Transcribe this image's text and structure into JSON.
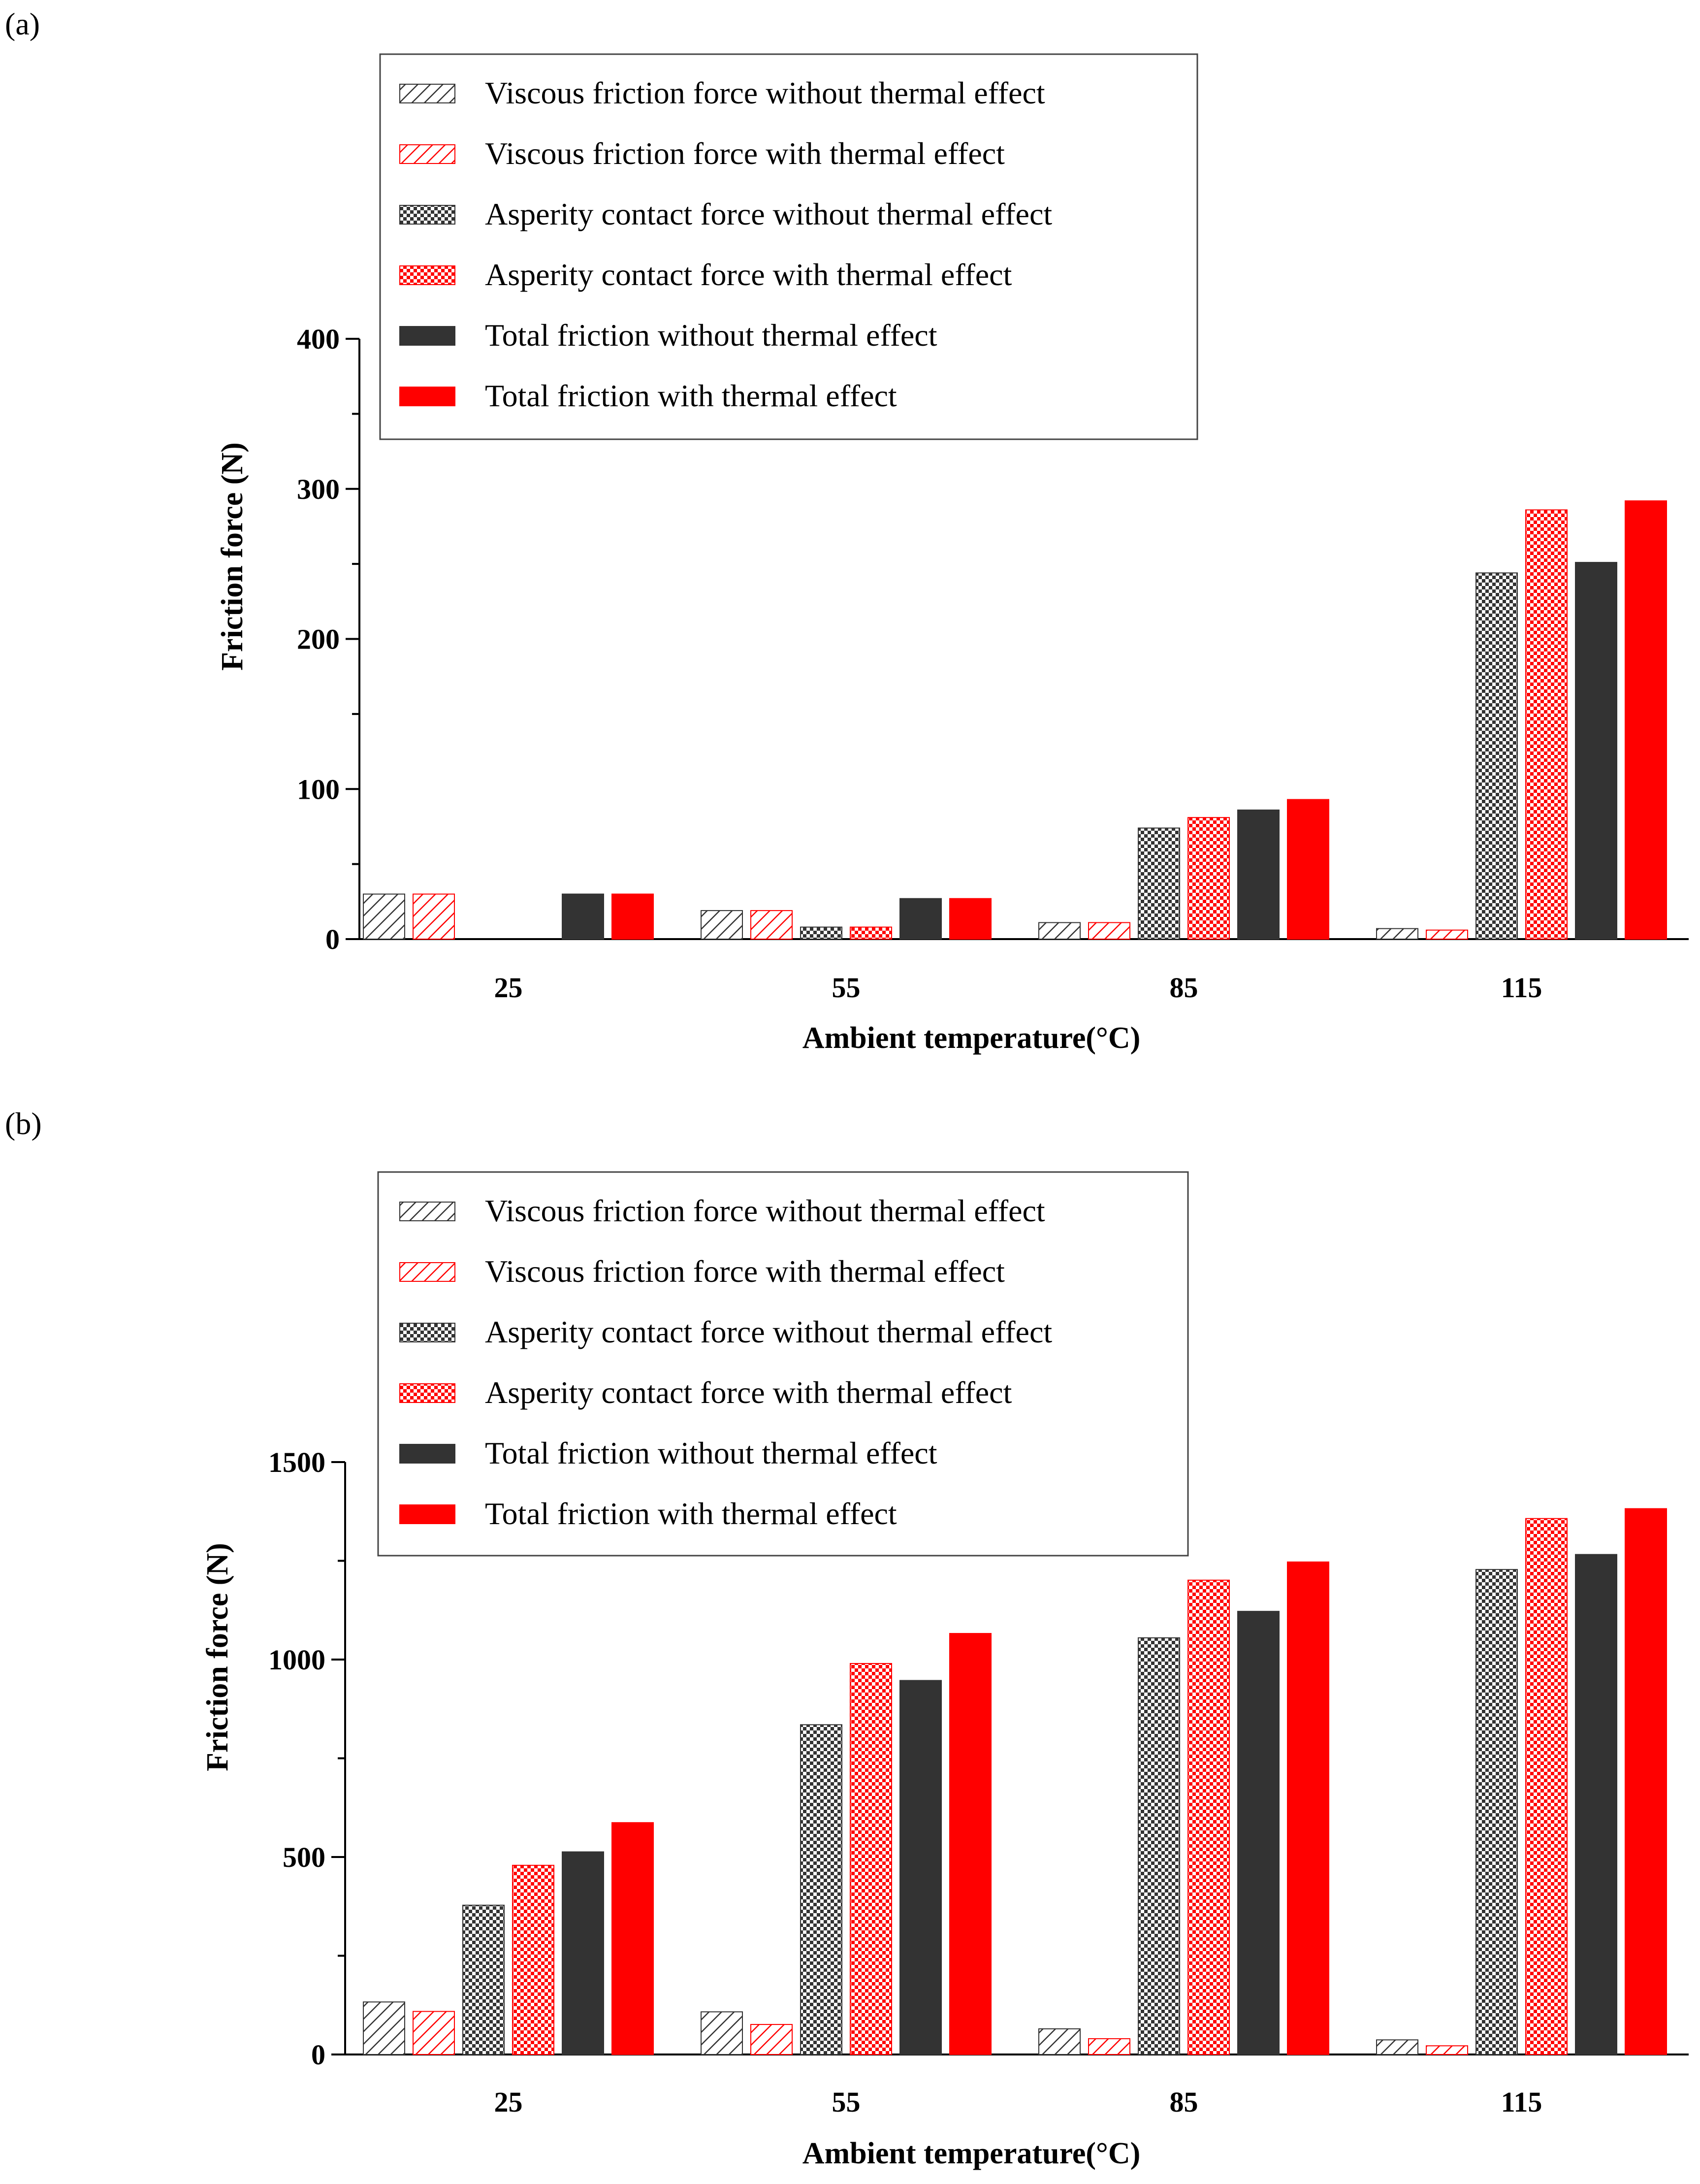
{
  "colors": {
    "black_series": "#333333",
    "red_series": "#ff0000",
    "axis": "#000000"
  },
  "chart_data": [
    {
      "panel_label": "(a)",
      "type": "bar",
      "xlabel": "Ambient temperature(°C)",
      "ylabel": "Friction force (N)",
      "ylim": [
        0,
        400
      ],
      "yticks": [
        "0",
        "100",
        "200",
        "300",
        "400"
      ],
      "categories": [
        "25",
        "55",
        "85",
        "115"
      ],
      "grid": false,
      "legend_position": "top",
      "series": [
        {
          "name": "Viscous friction force without thermal effect",
          "values": [
            30,
            19,
            11,
            7
          ],
          "color": "#333333",
          "pattern": "hatch"
        },
        {
          "name": "Viscous friction force with thermal effect",
          "values": [
            30,
            19,
            11,
            6
          ],
          "color": "#ff0000",
          "pattern": "hatch"
        },
        {
          "name": "Asperity contact  force without thermal effect",
          "values": [
            0,
            8,
            74,
            244
          ],
          "color": "#333333",
          "pattern": "checker"
        },
        {
          "name": "Asperity contact  force with thermal effect",
          "values": [
            0,
            8,
            81,
            286
          ],
          "color": "#ff0000",
          "pattern": "checker"
        },
        {
          "name": "Total friction without thermal effect",
          "values": [
            30,
            27,
            86,
            251
          ],
          "color": "#333333",
          "pattern": "solid"
        },
        {
          "name": "Total friction with thermal effect",
          "values": [
            30,
            27,
            93,
            292
          ],
          "color": "#ff0000",
          "pattern": "solid"
        }
      ]
    },
    {
      "panel_label": "(b)",
      "type": "bar",
      "xlabel": "Ambient temperature(°C)",
      "ylabel": "Friction force (N)",
      "ylim": [
        0,
        1500
      ],
      "yticks": [
        "0",
        "500",
        "1000",
        "1500"
      ],
      "categories": [
        "25",
        "55",
        "85",
        "115"
      ],
      "grid": false,
      "legend_position": "top",
      "series": [
        {
          "name": "Viscous friction force without thermal effect",
          "values": [
            133,
            108,
            65,
            37
          ],
          "color": "#333333",
          "pattern": "hatch"
        },
        {
          "name": "Viscous friction force with thermal effect",
          "values": [
            109,
            76,
            40,
            22
          ],
          "color": "#ff0000",
          "pattern": "hatch"
        },
        {
          "name": "Asperity contact  force without thermal effect",
          "values": [
            378,
            835,
            1055,
            1228
          ],
          "color": "#333333",
          "pattern": "checker"
        },
        {
          "name": "Asperity contact  force with thermal effect",
          "values": [
            479,
            990,
            1201,
            1357
          ],
          "color": "#ff0000",
          "pattern": "checker"
        },
        {
          "name": "Total friction without  thermal effect",
          "values": [
            513,
            947,
            1122,
            1266
          ],
          "color": "#333333",
          "pattern": "solid"
        },
        {
          "name": "Total friction with thermal effect",
          "values": [
            587,
            1066,
            1247,
            1382
          ],
          "color": "#ff0000",
          "pattern": "solid"
        }
      ]
    }
  ]
}
